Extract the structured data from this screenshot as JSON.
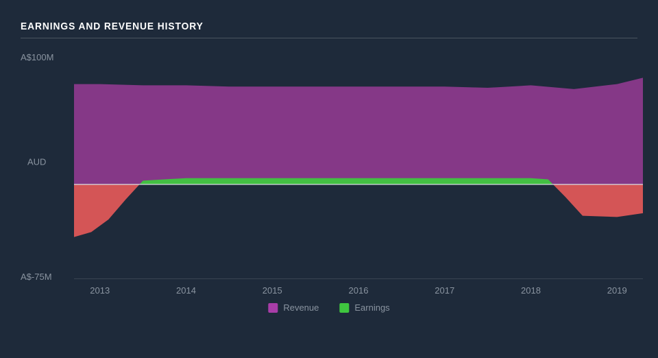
{
  "chart": {
    "type": "area",
    "title": "EARNINGS AND REVENUE HISTORY",
    "title_fontsize": 15,
    "title_color": "#ffffff",
    "background_color": "#1e2a3a",
    "axis_label_color": "#8a94a0",
    "axis_label_fontsize": 13,
    "rule_color": "#4a5560",
    "y_axis": {
      "top_label": "A$100M",
      "mid_label": "AUD",
      "bottom_label": "A$-75M",
      "min": -75,
      "max": 100
    },
    "x_axis": {
      "ticks": [
        "2013",
        "2014",
        "2015",
        "2016",
        "2017",
        "2018",
        "2019"
      ],
      "min": 2012.7,
      "max": 2019.3
    },
    "series": [
      {
        "name": "Revenue",
        "color": "#8e3a8e",
        "swatch_color": "#a83da8",
        "points": [
          {
            "x": 2012.7,
            "y": 80
          },
          {
            "x": 2013,
            "y": 80
          },
          {
            "x": 2013.5,
            "y": 79
          },
          {
            "x": 2014,
            "y": 79
          },
          {
            "x": 2014.5,
            "y": 78
          },
          {
            "x": 2015,
            "y": 78
          },
          {
            "x": 2015.5,
            "y": 78
          },
          {
            "x": 2016,
            "y": 78
          },
          {
            "x": 2016.5,
            "y": 78
          },
          {
            "x": 2017,
            "y": 78
          },
          {
            "x": 2017.5,
            "y": 77
          },
          {
            "x": 2018,
            "y": 79
          },
          {
            "x": 2018.5,
            "y": 76
          },
          {
            "x": 2019,
            "y": 80
          },
          {
            "x": 2019.3,
            "y": 85
          }
        ]
      },
      {
        "name": "Earnings",
        "color_positive": "#3fc63f",
        "color_negative": "#e85a5a",
        "swatch_color": "#3fc63f",
        "points": [
          {
            "x": 2012.7,
            "y": -42
          },
          {
            "x": 2012.9,
            "y": -38
          },
          {
            "x": 2013.1,
            "y": -28
          },
          {
            "x": 2013.3,
            "y": -12
          },
          {
            "x": 2013.5,
            "y": 3
          },
          {
            "x": 2014,
            "y": 5
          },
          {
            "x": 2014.5,
            "y": 5
          },
          {
            "x": 2015,
            "y": 5
          },
          {
            "x": 2015.5,
            "y": 5
          },
          {
            "x": 2016,
            "y": 5
          },
          {
            "x": 2016.5,
            "y": 5
          },
          {
            "x": 2017,
            "y": 5
          },
          {
            "x": 2017.5,
            "y": 5
          },
          {
            "x": 2018,
            "y": 5
          },
          {
            "x": 2018.2,
            "y": 4
          },
          {
            "x": 2018.4,
            "y": -10
          },
          {
            "x": 2018.6,
            "y": -25
          },
          {
            "x": 2019,
            "y": -26
          },
          {
            "x": 2019.3,
            "y": -23
          }
        ]
      }
    ],
    "legend": [
      {
        "label": "Revenue",
        "color": "#a83da8"
      },
      {
        "label": "Earnings",
        "color": "#3fc63f"
      }
    ],
    "zero_line_color": "#d8dde3",
    "grid_color": "#3a4452"
  }
}
